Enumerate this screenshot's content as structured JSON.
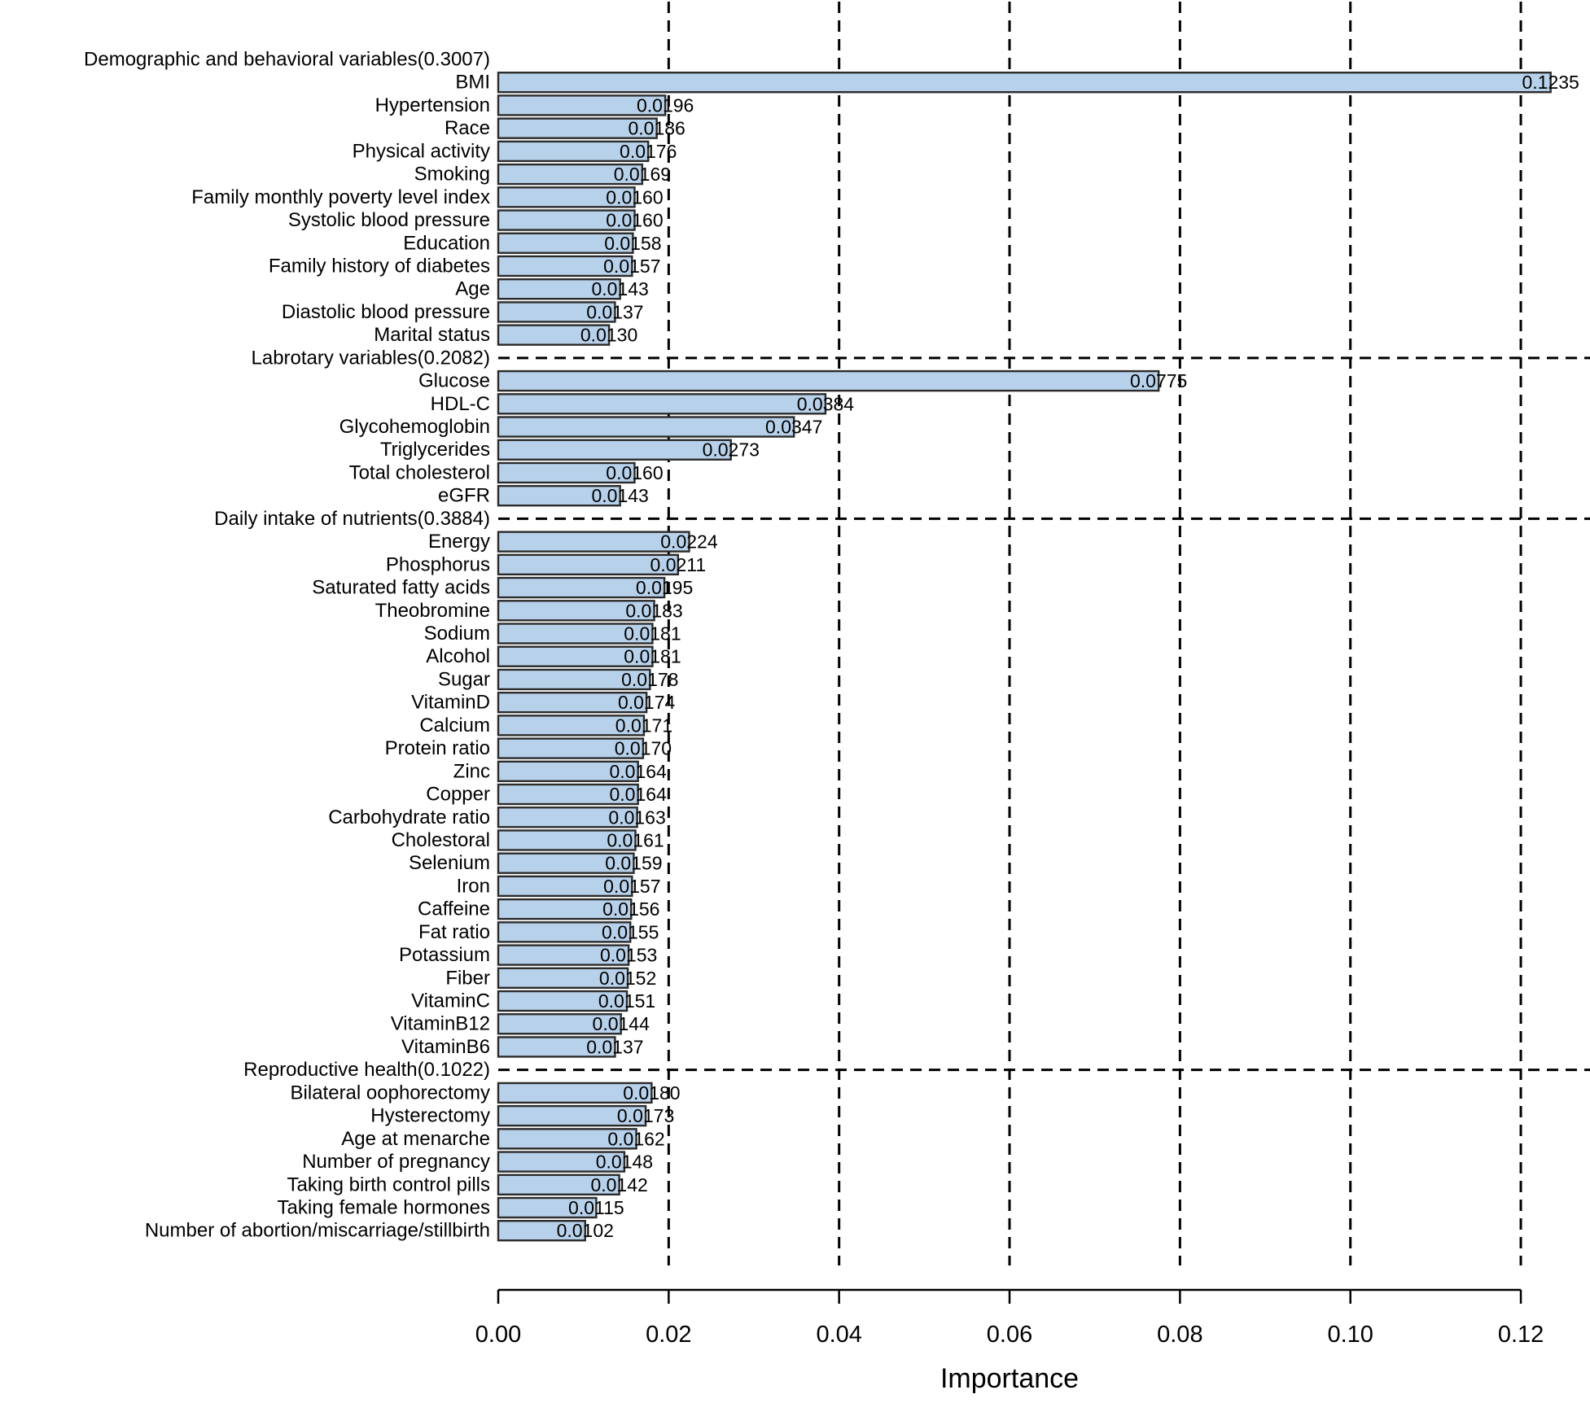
{
  "figure": {
    "background": "#ffffff"
  },
  "chart_data": {
    "type": "bar",
    "orientation": "horizontal",
    "title": "",
    "xlabel": "Importance",
    "ylabel": "",
    "xlim": [
      0.0,
      0.12
    ],
    "x_ticks": [
      0.0,
      0.02,
      0.04,
      0.06,
      0.08,
      0.1,
      0.12
    ],
    "x_tick_decimals": 2,
    "value_label_decimals": 4,
    "grid": "dashed vertical gridlines at x ticks; dashed horizontal separator at each group header except the first",
    "legend": "none",
    "colors": {
      "bar_fill": "#b8d1ea",
      "bar_border": "#2b2b2b",
      "grid_line": "#000000",
      "axis_line": "#000000",
      "text": "#000000"
    },
    "groups": [
      {
        "label": "Demographic and behavioral variables(0.3007)",
        "items": [
          {
            "label": "BMI",
            "value": 0.1235
          },
          {
            "label": "Hypertension",
            "value": 0.0196
          },
          {
            "label": "Race",
            "value": 0.0186
          },
          {
            "label": "Physical activity",
            "value": 0.0176
          },
          {
            "label": "Smoking",
            "value": 0.0169
          },
          {
            "label": "Family monthly poverty level index",
            "value": 0.016
          },
          {
            "label": "Systolic blood pressure",
            "value": 0.016
          },
          {
            "label": "Education",
            "value": 0.0158
          },
          {
            "label": "Family history of diabetes",
            "value": 0.0157
          },
          {
            "label": "Age",
            "value": 0.0143
          },
          {
            "label": "Diastolic blood pressure",
            "value": 0.0137
          },
          {
            "label": "Marital status",
            "value": 0.013
          }
        ]
      },
      {
        "label": "Labrotary variables(0.2082)",
        "items": [
          {
            "label": "Glucose",
            "value": 0.0775
          },
          {
            "label": "HDL-C",
            "value": 0.0384
          },
          {
            "label": "Glycohemoglobin",
            "value": 0.0347
          },
          {
            "label": "Triglycerides",
            "value": 0.0273
          },
          {
            "label": "Total cholesterol",
            "value": 0.016
          },
          {
            "label": "eGFR",
            "value": 0.0143
          }
        ]
      },
      {
        "label": "Daily intake of nutrients(0.3884)",
        "items": [
          {
            "label": "Energy",
            "value": 0.0224
          },
          {
            "label": "Phosphorus",
            "value": 0.0211
          },
          {
            "label": "Saturated fatty acids",
            "value": 0.0195
          },
          {
            "label": "Theobromine",
            "value": 0.0183
          },
          {
            "label": "Sodium",
            "value": 0.0181
          },
          {
            "label": "Alcohol",
            "value": 0.0181
          },
          {
            "label": "Sugar",
            "value": 0.0178
          },
          {
            "label": "VitaminD",
            "value": 0.0174
          },
          {
            "label": "Calcium",
            "value": 0.0171
          },
          {
            "label": "Protein ratio",
            "value": 0.017
          },
          {
            "label": "Zinc",
            "value": 0.0164
          },
          {
            "label": "Copper",
            "value": 0.0164
          },
          {
            "label": "Carbohydrate ratio",
            "value": 0.0163
          },
          {
            "label": "Cholestoral",
            "value": 0.0161
          },
          {
            "label": "Selenium",
            "value": 0.0159
          },
          {
            "label": "Iron",
            "value": 0.0157
          },
          {
            "label": "Caffeine",
            "value": 0.0156
          },
          {
            "label": "Fat ratio",
            "value": 0.0155
          },
          {
            "label": "Potassium",
            "value": 0.0153
          },
          {
            "label": "Fiber",
            "value": 0.0152
          },
          {
            "label": "VitaminC",
            "value": 0.0151
          },
          {
            "label": "VitaminB12",
            "value": 0.0144
          },
          {
            "label": "VitaminB6",
            "value": 0.0137
          }
        ]
      },
      {
        "label": "Reproductive health(0.1022)",
        "items": [
          {
            "label": "Bilateral oophorectomy",
            "value": 0.018
          },
          {
            "label": "Hysterectomy",
            "value": 0.0173
          },
          {
            "label": "Age at menarche",
            "value": 0.0162
          },
          {
            "label": "Number of pregnancy",
            "value": 0.0148
          },
          {
            "label": "Taking birth control pills",
            "value": 0.0142
          },
          {
            "label": "Taking female hormones",
            "value": 0.0115
          },
          {
            "label": "Number of abortion/miscarriage/stillbirth",
            "value": 0.0102
          }
        ]
      }
    ]
  }
}
